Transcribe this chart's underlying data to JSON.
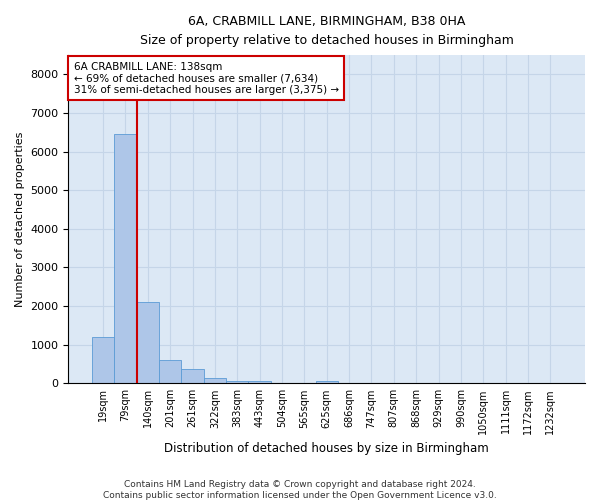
{
  "title1": "6A, CRABMILL LANE, BIRMINGHAM, B38 0HA",
  "title2": "Size of property relative to detached houses in Birmingham",
  "xlabel": "Distribution of detached houses by size in Birmingham",
  "ylabel": "Number of detached properties",
  "bar_labels": [
    "19sqm",
    "79sqm",
    "140sqm",
    "201sqm",
    "261sqm",
    "322sqm",
    "383sqm",
    "443sqm",
    "504sqm",
    "565sqm",
    "625sqm",
    "686sqm",
    "747sqm",
    "807sqm",
    "868sqm",
    "929sqm",
    "990sqm",
    "1050sqm",
    "1111sqm",
    "1172sqm",
    "1232sqm"
  ],
  "bar_values": [
    1200,
    6450,
    2100,
    600,
    380,
    150,
    50,
    50,
    0,
    0,
    50,
    0,
    0,
    0,
    0,
    0,
    0,
    0,
    0,
    0,
    0
  ],
  "bar_color": "#aec6e8",
  "bar_edge_color": "#5b9bd5",
  "property_line_bar_index": 1,
  "annotation_title": "6A CRABMILL LANE: 138sqm",
  "annotation_line1": "← 69% of detached houses are smaller (7,634)",
  "annotation_line2": "31% of semi-detached houses are larger (3,375) →",
  "annotation_box_color": "#cc0000",
  "ylim": [
    0,
    8500
  ],
  "yticks": [
    0,
    1000,
    2000,
    3000,
    4000,
    5000,
    6000,
    7000,
    8000
  ],
  "grid_color": "#c5d5e8",
  "background_color": "#dce8f5",
  "footnote1": "Contains HM Land Registry data © Crown copyright and database right 2024.",
  "footnote2": "Contains public sector information licensed under the Open Government Licence v3.0."
}
